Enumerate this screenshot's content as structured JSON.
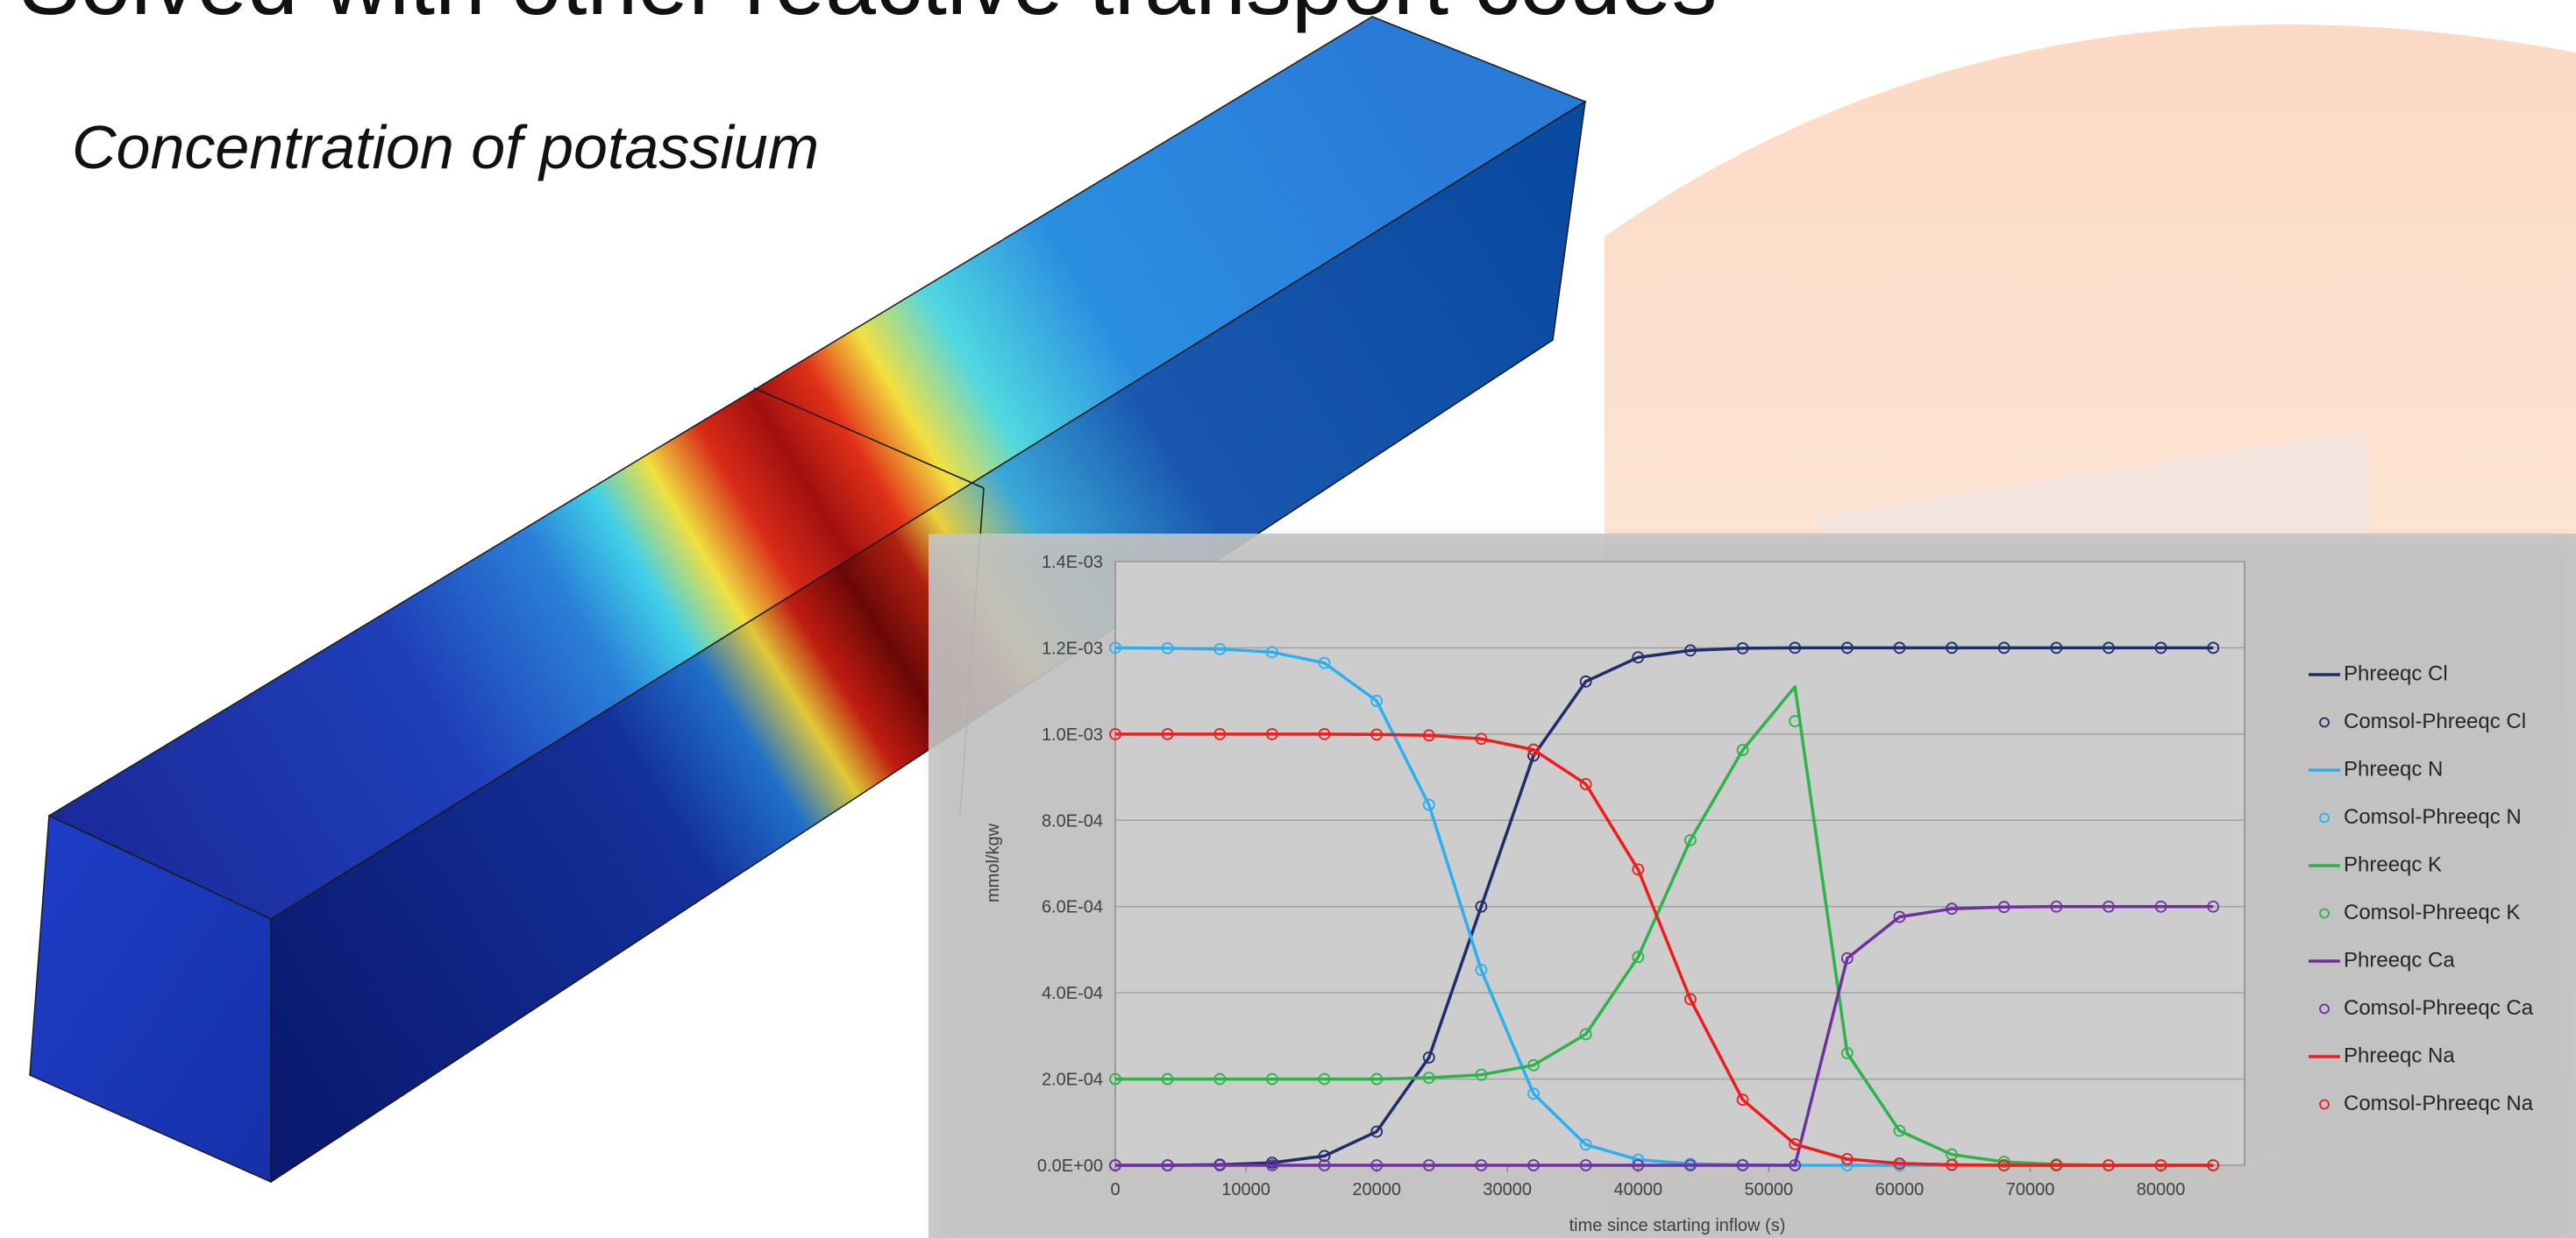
{
  "slide": {
    "title": "Solved with other reactive transport codes",
    "subtitle": "Concentration of potassium"
  },
  "chart_data": {
    "type": "line",
    "xlabel": "time since starting inflow (s)",
    "ylabel": "mmol/kgw",
    "x": [
      0,
      4000,
      8000,
      12000,
      16000,
      20000,
      24000,
      28000,
      32000,
      36000,
      40000,
      44000,
      48000,
      52000,
      56000,
      60000,
      64000,
      68000,
      72000,
      76000,
      80000,
      84000
    ],
    "xlim": [
      0,
      86400
    ],
    "xticks": [
      0,
      10000,
      20000,
      30000,
      40000,
      50000,
      60000,
      70000,
      80000
    ],
    "ylim": [
      0,
      0.0014
    ],
    "yticks": [
      {
        "value": 0,
        "label": "0.0E+00"
      },
      {
        "value": 0.0002,
        "label": "2.0E-04"
      },
      {
        "value": 0.0004,
        "label": "4.0E-04"
      },
      {
        "value": 0.0006,
        "label": "6.0E-04"
      },
      {
        "value": 0.0008,
        "label": "8.0E-04"
      },
      {
        "value": 0.001,
        "label": "1.0E-03"
      },
      {
        "value": 0.0012,
        "label": "1.2E-03"
      },
      {
        "value": 0.0014,
        "label": "1.4E-03"
      }
    ],
    "grid": true,
    "legend": "right",
    "series": [
      {
        "name": "Phreeqc Cl",
        "style": "line",
        "color": "#1f2d6b",
        "values": [
          0,
          0,
          1.5e-06,
          5.8e-06,
          2.15e-05,
          7.8e-05,
          0.00025,
          0.0006,
          0.00095,
          0.001122,
          0.001178,
          0.001194,
          0.001199,
          0.0012,
          0.0012,
          0.0012,
          0.0012,
          0.0012,
          0.0012,
          0.0012,
          0.0012,
          0.0012
        ]
      },
      {
        "name": "Comsol-Phreeqc Cl",
        "style": "markers",
        "color": "#1f2d6b",
        "values": [
          0,
          0,
          1.5e-06,
          5.8e-06,
          2.15e-05,
          7.8e-05,
          0.00025,
          0.0006,
          0.00095,
          0.001122,
          0.001178,
          0.001194,
          0.001199,
          0.0012,
          0.0012,
          0.0012,
          0.0012,
          0.0012,
          0.0012,
          0.0012,
          0.0012,
          0.0012
        ]
      },
      {
        "name": "Phreeqc N",
        "style": "line",
        "color": "#2ab0f0",
        "values": [
          0.0012,
          0.001199,
          0.001197,
          0.00119,
          0.001165,
          0.001077,
          0.000836,
          0.000453,
          0.000166,
          4.8e-05,
          1.3e-05,
          3.5e-06,
          1e-06,
          0,
          0,
          0,
          0,
          0,
          0,
          0,
          0,
          0
        ]
      },
      {
        "name": "Comsol-Phreeqc N",
        "style": "markers",
        "color": "#2ab0f0",
        "values": [
          0.0012,
          0.001199,
          0.001197,
          0.00119,
          0.001165,
          0.001077,
          0.000836,
          0.000453,
          0.000166,
          4.8e-05,
          1.3e-05,
          3.5e-06,
          1e-06,
          0,
          0,
          0,
          0,
          0,
          0,
          0,
          0,
          0
        ]
      },
      {
        "name": "Phreeqc K",
        "style": "line",
        "color": "#2db34a",
        "values": [
          0.0002,
          0.0002,
          0.0002,
          0.0002,
          0.0002,
          0.0002,
          0.000203,
          0.00021,
          0.000232,
          0.000304,
          0.000483,
          0.000754,
          0.000963,
          0.00111,
          0.00026,
          8e-05,
          2.5e-05,
          8e-06,
          2e-06,
          0,
          0,
          0
        ]
      },
      {
        "name": "Comsol-Phreeqc K",
        "style": "markers",
        "color": "#2db34a",
        "values": [
          0.0002,
          0.0002,
          0.0002,
          0.0002,
          0.0002,
          0.0002,
          0.000203,
          0.00021,
          0.000232,
          0.000304,
          0.000483,
          0.000754,
          0.000963,
          0.00103,
          0.00026,
          8e-05,
          2.5e-05,
          8e-06,
          2e-06,
          0,
          0,
          0
        ]
      },
      {
        "name": "Phreeqc Ca",
        "style": "line",
        "color": "#7030a0",
        "values": [
          0,
          0,
          0,
          0,
          0,
          0,
          0,
          0,
          0,
          0,
          0,
          0,
          0,
          0,
          0.00048,
          0.000576,
          0.000595,
          0.000599,
          0.0006,
          0.0006,
          0.0006,
          0.0006
        ]
      },
      {
        "name": "Comsol-Phreeqc Ca",
        "style": "markers",
        "color": "#7030a0",
        "values": [
          0,
          0,
          0,
          0,
          0,
          0,
          0,
          0,
          0,
          0,
          0,
          0,
          0,
          0,
          0.00048,
          0.000576,
          0.000595,
          0.000599,
          0.0006,
          0.0006,
          0.0006,
          0.0006
        ]
      },
      {
        "name": "Phreeqc Na",
        "style": "line",
        "color": "#ee1c1c",
        "values": [
          0.001,
          0.001,
          0.001,
          0.001,
          0.001,
          0.000999,
          0.000997,
          0.000989,
          0.000964,
          0.000884,
          0.000686,
          0.000385,
          0.000152,
          4.9e-05,
          1.45e-05,
          4.2e-06,
          1.2e-06,
          0,
          0,
          0,
          0,
          0
        ]
      },
      {
        "name": "Comsol-Phreeqc Na",
        "style": "markers",
        "color": "#ee1c1c",
        "values": [
          0.001,
          0.001,
          0.001,
          0.001,
          0.001,
          0.000999,
          0.000997,
          0.000989,
          0.000964,
          0.000884,
          0.000686,
          0.000385,
          0.000152,
          4.9e-05,
          1.45e-05,
          4.2e-06,
          1.2e-06,
          0,
          0,
          0,
          0,
          0
        ]
      }
    ]
  }
}
